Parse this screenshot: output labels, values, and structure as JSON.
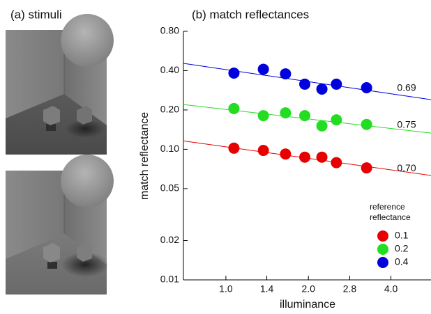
{
  "stimuli_title": "(a) stimuli",
  "chart_data": {
    "type": "scatter",
    "title": "(b) match reflectances",
    "x_label": "illuminance",
    "y_label": "match reflectance",
    "xscale": "log",
    "yscale": "log",
    "xlim": [
      0.7,
      5.6
    ],
    "ylim": [
      0.01,
      0.8
    ],
    "xticks": [
      {
        "value": 1,
        "label": "1.0"
      },
      {
        "value": 1.41,
        "label": "1.4"
      },
      {
        "value": 2,
        "label": "2.0"
      },
      {
        "value": 2.83,
        "label": "2.8"
      },
      {
        "value": 4,
        "label": "4.0"
      }
    ],
    "yticks": [
      {
        "value": 0.8,
        "label": "0.80"
      },
      {
        "value": 0.4,
        "label": "0.40"
      },
      {
        "value": 0.2,
        "label": "0.20"
      },
      {
        "value": 0.1,
        "label": "0.10"
      },
      0.05,
      0.02,
      0.01
    ],
    "x": [
      1.07,
      1.37,
      1.65,
      1.94,
      2.24,
      2.53,
      3.26
    ],
    "legend_title": [
      "reference",
      "reflectance"
    ],
    "legend_position": "lower right",
    "series": [
      {
        "name": "0.1",
        "color": "#e60000",
        "values": [
          0.102,
          0.098,
          0.092,
          0.087,
          0.087,
          0.079,
          0.072
        ],
        "fit": [
          0.116,
          0.063
        ],
        "label": "0.70"
      },
      {
        "name": "0.2",
        "color": "#22dd22",
        "values": [
          0.205,
          0.181,
          0.19,
          0.181,
          0.151,
          0.168,
          0.155
        ],
        "fit": [
          0.22,
          0.133
        ],
        "label": "0.75"
      },
      {
        "name": "0.4",
        "color": "#0000dd",
        "values": [
          0.383,
          0.41,
          0.378,
          0.315,
          0.289,
          0.315,
          0.296
        ],
        "fit": [
          0.455,
          0.24
        ],
        "label": "0.69"
      }
    ]
  }
}
